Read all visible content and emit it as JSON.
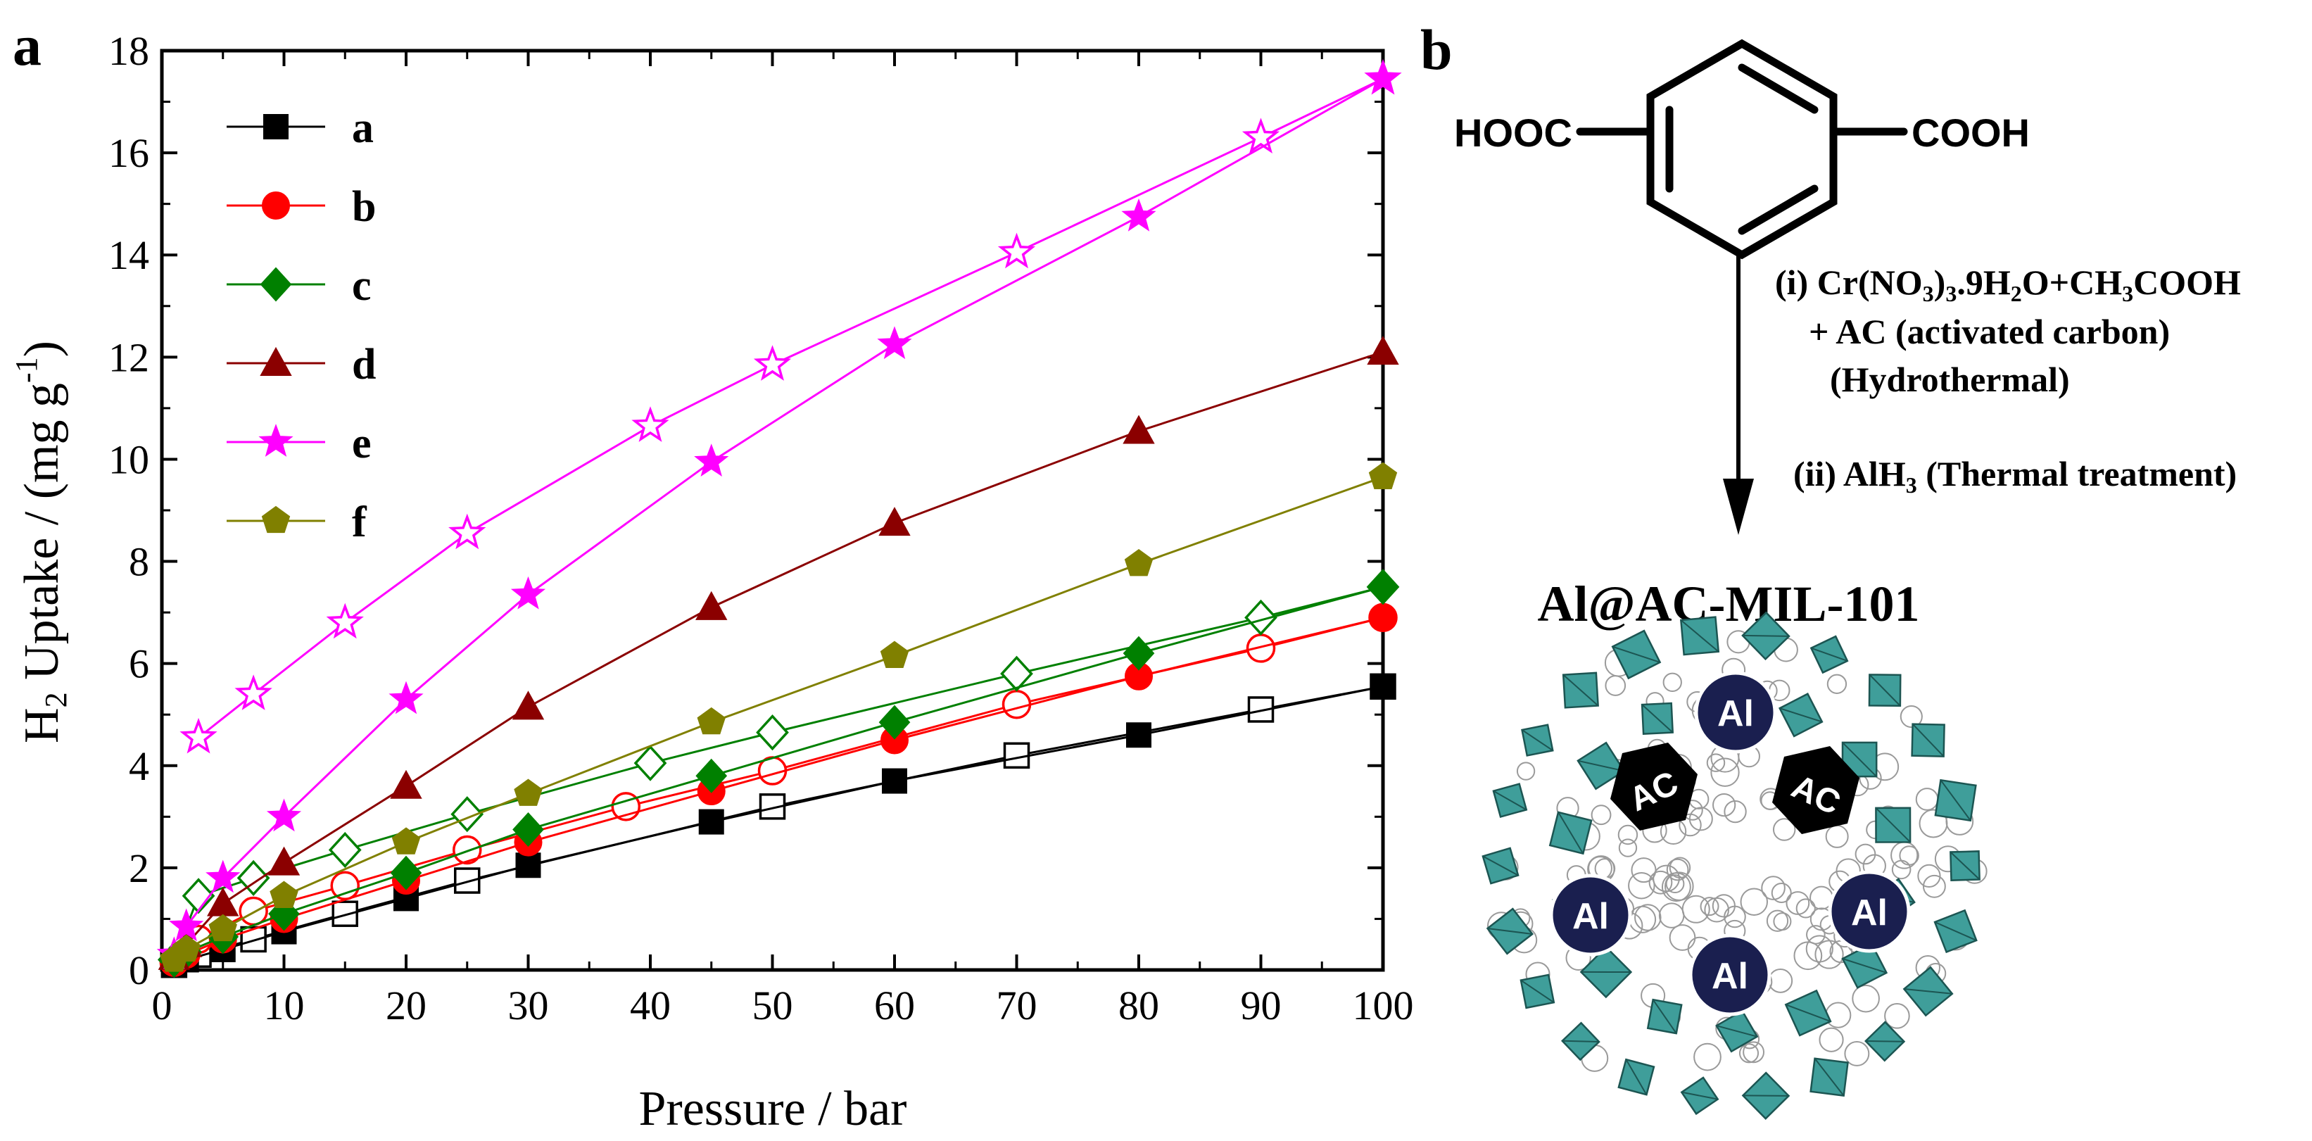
{
  "panel_a": {
    "label": "a"
  },
  "panel_b": {
    "label": "b",
    "molecule": {
      "left_group": "HOOC",
      "right_group": "COOH"
    },
    "step_i": [
      "(i) Cr(NO",
      "3",
      ")",
      "3",
      ".9H",
      "2",
      "O+CH",
      "3",
      "COOH"
    ],
    "step_i_line2": "+ AC (activated carbon)",
    "step_i_line3": "(Hydrothermal)",
    "step_ii": [
      "(ii) AlH",
      "3",
      " (Thermal treatment)"
    ],
    "product_title": "Al@AC-MIL-101",
    "al_label": "Al",
    "ac_label": "AC"
  },
  "chart_data": {
    "type": "line",
    "xlabel": "Pressure / bar",
    "ylabel_parts": [
      "H",
      "2",
      " Uptake / (mg g",
      "-1",
      ")"
    ],
    "xlim": [
      0,
      100
    ],
    "ylim": [
      0,
      18
    ],
    "xticks": [
      0,
      10,
      20,
      30,
      40,
      50,
      60,
      70,
      80,
      90,
      100
    ],
    "yticks": [
      0,
      2,
      4,
      6,
      8,
      10,
      12,
      14,
      16,
      18
    ],
    "legend_position": "top-left",
    "grid": false,
    "series": [
      {
        "name": "a",
        "color": "#000000",
        "marker": "square",
        "adsorption": {
          "x": [
            1,
            2,
            5,
            10,
            20,
            30,
            45,
            60,
            80,
            100
          ],
          "y": [
            0.1,
            0.2,
            0.4,
            0.75,
            1.4,
            2.05,
            2.9,
            3.7,
            4.6,
            5.55
          ]
        },
        "desorption": {
          "x": [
            100,
            90,
            70,
            50,
            25,
            15,
            7.5,
            3,
            1
          ],
          "y": [
            5.55,
            5.1,
            4.2,
            3.2,
            1.75,
            1.1,
            0.6,
            0.3,
            0.1
          ]
        }
      },
      {
        "name": "b",
        "color": "#ff0000",
        "marker": "circle",
        "adsorption": {
          "x": [
            1,
            2,
            5,
            10,
            20,
            30,
            45,
            60,
            80,
            100
          ],
          "y": [
            0.15,
            0.3,
            0.6,
            1.0,
            1.75,
            2.5,
            3.5,
            4.5,
            5.75,
            6.9
          ]
        },
        "desorption": {
          "x": [
            100,
            90,
            70,
            50,
            38,
            25,
            15,
            7.5,
            3,
            1
          ],
          "y": [
            6.9,
            6.3,
            5.2,
            3.9,
            3.2,
            2.35,
            1.65,
            1.15,
            0.6,
            0.15
          ]
        }
      },
      {
        "name": "c",
        "color": "#008000",
        "marker": "diamond",
        "adsorption": {
          "x": [
            1,
            2,
            5,
            10,
            20,
            30,
            45,
            60,
            80,
            100
          ],
          "y": [
            0.2,
            0.35,
            0.65,
            1.1,
            1.9,
            2.75,
            3.8,
            4.85,
            6.2,
            7.5
          ]
        },
        "desorption": {
          "x": [
            100,
            90,
            70,
            50,
            40,
            25,
            15,
            7.5,
            3,
            1
          ],
          "y": [
            7.5,
            6.9,
            5.8,
            4.65,
            4.05,
            3.05,
            2.35,
            1.8,
            1.45,
            0.2
          ]
        }
      },
      {
        "name": "d",
        "color": "#8b0000",
        "marker": "triangle",
        "adsorption": {
          "x": [
            1,
            2,
            5,
            10,
            20,
            30,
            45,
            60,
            80,
            100
          ],
          "y": [
            0.25,
            0.5,
            1.3,
            2.1,
            3.6,
            5.15,
            7.1,
            8.75,
            10.55,
            12.1
          ]
        },
        "desorption": null
      },
      {
        "name": "e",
        "color": "#ff00ff",
        "marker": "star",
        "adsorption": {
          "x": [
            1,
            2,
            5,
            10,
            20,
            30,
            45,
            60,
            80,
            100
          ],
          "y": [
            0.3,
            0.85,
            1.8,
            3.0,
            5.3,
            7.35,
            9.95,
            12.25,
            14.75,
            17.45
          ]
        },
        "desorption": {
          "x": [
            100,
            90,
            70,
            50,
            40,
            25,
            15,
            7.5,
            3
          ],
          "y": [
            17.45,
            16.3,
            14.05,
            11.85,
            10.65,
            8.55,
            6.8,
            5.4,
            4.55
          ]
        }
      },
      {
        "name": "f",
        "color": "#808000",
        "marker": "pentagon",
        "adsorption": {
          "x": [
            1,
            2,
            5,
            10,
            20,
            30,
            45,
            60,
            80,
            100
          ],
          "y": [
            0.2,
            0.4,
            0.8,
            1.45,
            2.5,
            3.45,
            4.85,
            6.15,
            7.95,
            9.65
          ]
        },
        "desorption": null
      }
    ]
  }
}
